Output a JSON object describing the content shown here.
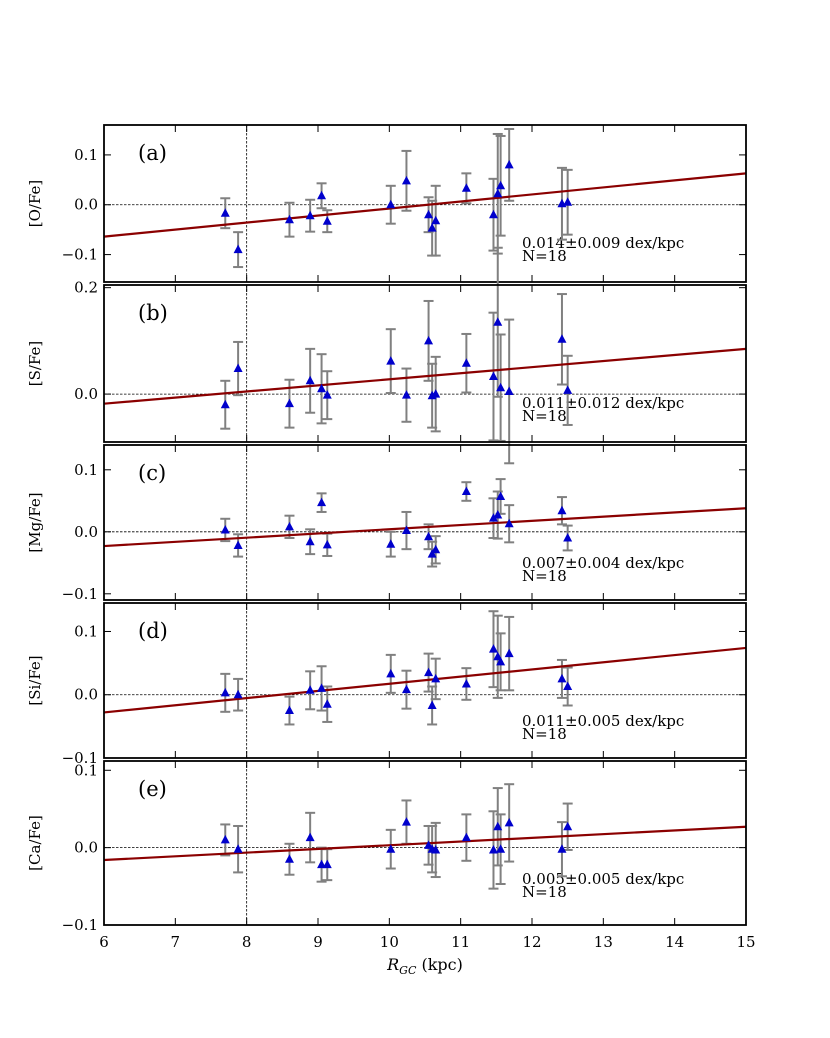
{
  "figure": {
    "xlabel_italic": "R",
    "xlabel_sub": "GC",
    "xlabel_unit": " (kpc)"
  },
  "chart_data": {
    "type": "scatter",
    "x_range": [
      6,
      15
    ],
    "x_ticks": [
      6,
      7,
      8,
      9,
      10,
      11,
      12,
      13,
      14,
      15
    ],
    "vertical_line_x": 8,
    "horizontal_line_y": 0,
    "point_color": "#0000cc",
    "errorbar_color": "#808080",
    "fit_color": "#8b0000",
    "R": [
      7.7,
      7.88,
      8.6,
      8.89,
      9.05,
      9.13,
      10.02,
      10.24,
      10.55,
      10.6,
      10.65,
      11.08,
      11.46,
      11.52,
      11.56,
      11.68,
      12.42,
      12.5
    ],
    "panels": [
      {
        "tag": "(a)",
        "ylabel": "[O/Fe]",
        "ylim": [
          -0.155,
          0.16
        ],
        "yticks": [
          -0.1,
          0.0,
          0.1
        ],
        "ytick_labels": [
          "−0.1",
          "0.0",
          "0.1"
        ],
        "slope_text": "0.014±0.009 dex/kpc",
        "n_text": "N=18",
        "fit_endpoints": [
          [
            6,
            -0.064
          ],
          [
            15,
            0.063
          ]
        ],
        "y": [
          -0.017,
          -0.09,
          -0.03,
          -0.022,
          0.018,
          -0.033,
          0.0,
          0.048,
          -0.02,
          -0.047,
          -0.032,
          0.033,
          -0.02,
          0.022,
          0.038,
          0.08,
          0.002,
          0.005
        ],
        "err": [
          0.03,
          0.035,
          0.034,
          0.032,
          0.025,
          0.022,
          0.038,
          0.06,
          0.035,
          0.055,
          0.07,
          0.03,
          0.072,
          0.12,
          0.1,
          0.072,
          0.072,
          0.065
        ]
      },
      {
        "tag": "(b)",
        "ylabel": "[S/Fe]",
        "ylim": [
          -0.09,
          0.205
        ],
        "yticks": [
          0.0,
          0.2
        ],
        "ytick_labels": [
          "0.0",
          "0.2"
        ],
        "slope_text": "0.011±0.012 dex/kpc",
        "n_text": "N=18",
        "fit_endpoints": [
          [
            6,
            -0.018
          ],
          [
            15,
            0.085
          ]
        ],
        "y": [
          -0.02,
          0.048,
          -0.018,
          0.025,
          0.01,
          -0.002,
          0.062,
          -0.002,
          0.1,
          -0.003,
          0.0,
          0.058,
          0.033,
          0.135,
          0.012,
          0.005,
          0.103,
          0.007
        ],
        "err": [
          0.045,
          0.05,
          0.045,
          0.06,
          0.065,
          0.045,
          0.06,
          0.05,
          0.075,
          0.06,
          0.07,
          0.055,
          0.12,
          0.14,
          0.1,
          0.135,
          0.085,
          0.065
        ]
      },
      {
        "tag": "(c)",
        "ylabel": "[Mg/Fe]",
        "ylim": [
          -0.11,
          0.14
        ],
        "yticks": [
          -0.1,
          0.0,
          0.1
        ],
        "ytick_labels": [
          "−0.1",
          "0.0",
          "0.1"
        ],
        "slope_text": "0.007±0.004 dex/kpc",
        "n_text": "N=18",
        "fit_endpoints": [
          [
            6,
            -0.023
          ],
          [
            15,
            0.038
          ]
        ],
        "y": [
          0.003,
          -0.022,
          0.008,
          -0.016,
          0.047,
          -0.021,
          -0.02,
          0.002,
          -0.008,
          -0.036,
          -0.029,
          0.065,
          0.022,
          0.027,
          0.057,
          0.013,
          0.034,
          -0.01
        ],
        "err": [
          0.018,
          0.018,
          0.018,
          0.02,
          0.015,
          0.018,
          0.02,
          0.03,
          0.02,
          0.02,
          0.022,
          0.015,
          0.032,
          0.038,
          0.028,
          0.03,
          0.022,
          0.02
        ]
      },
      {
        "tag": "(d)",
        "ylabel": "[Si/Fe]",
        "ylim": [
          -0.1,
          0.145
        ],
        "yticks": [
          -0.1,
          0.0,
          0.1
        ],
        "ytick_labels": [
          "−0.1",
          "0.0",
          "0.1"
        ],
        "slope_text": "0.011±0.005 dex/kpc",
        "n_text": "N=18",
        "fit_endpoints": [
          [
            6,
            -0.028
          ],
          [
            15,
            0.074
          ]
        ],
        "y": [
          0.003,
          0.0,
          -0.025,
          0.007,
          0.01,
          -0.015,
          0.033,
          0.008,
          0.035,
          -0.017,
          0.025,
          0.017,
          0.072,
          0.06,
          0.052,
          0.065,
          0.025,
          0.013
        ],
        "err": [
          0.03,
          0.025,
          0.022,
          0.03,
          0.035,
          0.028,
          0.03,
          0.03,
          0.03,
          0.03,
          0.032,
          0.025,
          0.06,
          0.065,
          0.045,
          0.058,
          0.03,
          0.03
        ]
      },
      {
        "tag": "(e)",
        "ylabel": "[Ca/Fe]",
        "ylim": [
          -0.1,
          0.112
        ],
        "yticks": [
          -0.1,
          0.0,
          0.1
        ],
        "ytick_labels": [
          "−0.1",
          "0.0",
          "0.1"
        ],
        "slope_text": "0.005±0.005 dex/kpc",
        "n_text": "N=18",
        "fit_endpoints": [
          [
            6,
            -0.016
          ],
          [
            15,
            0.027
          ]
        ],
        "y": [
          0.01,
          -0.002,
          -0.015,
          0.013,
          -0.022,
          -0.022,
          -0.002,
          0.033,
          0.003,
          -0.002,
          -0.003,
          0.013,
          -0.003,
          0.027,
          -0.002,
          0.032,
          -0.002,
          0.027
        ],
        "err": [
          0.02,
          0.03,
          0.02,
          0.032,
          0.022,
          0.02,
          0.025,
          0.028,
          0.025,
          0.03,
          0.035,
          0.03,
          0.05,
          0.05,
          0.045,
          0.05,
          0.035,
          0.03
        ]
      }
    ]
  }
}
